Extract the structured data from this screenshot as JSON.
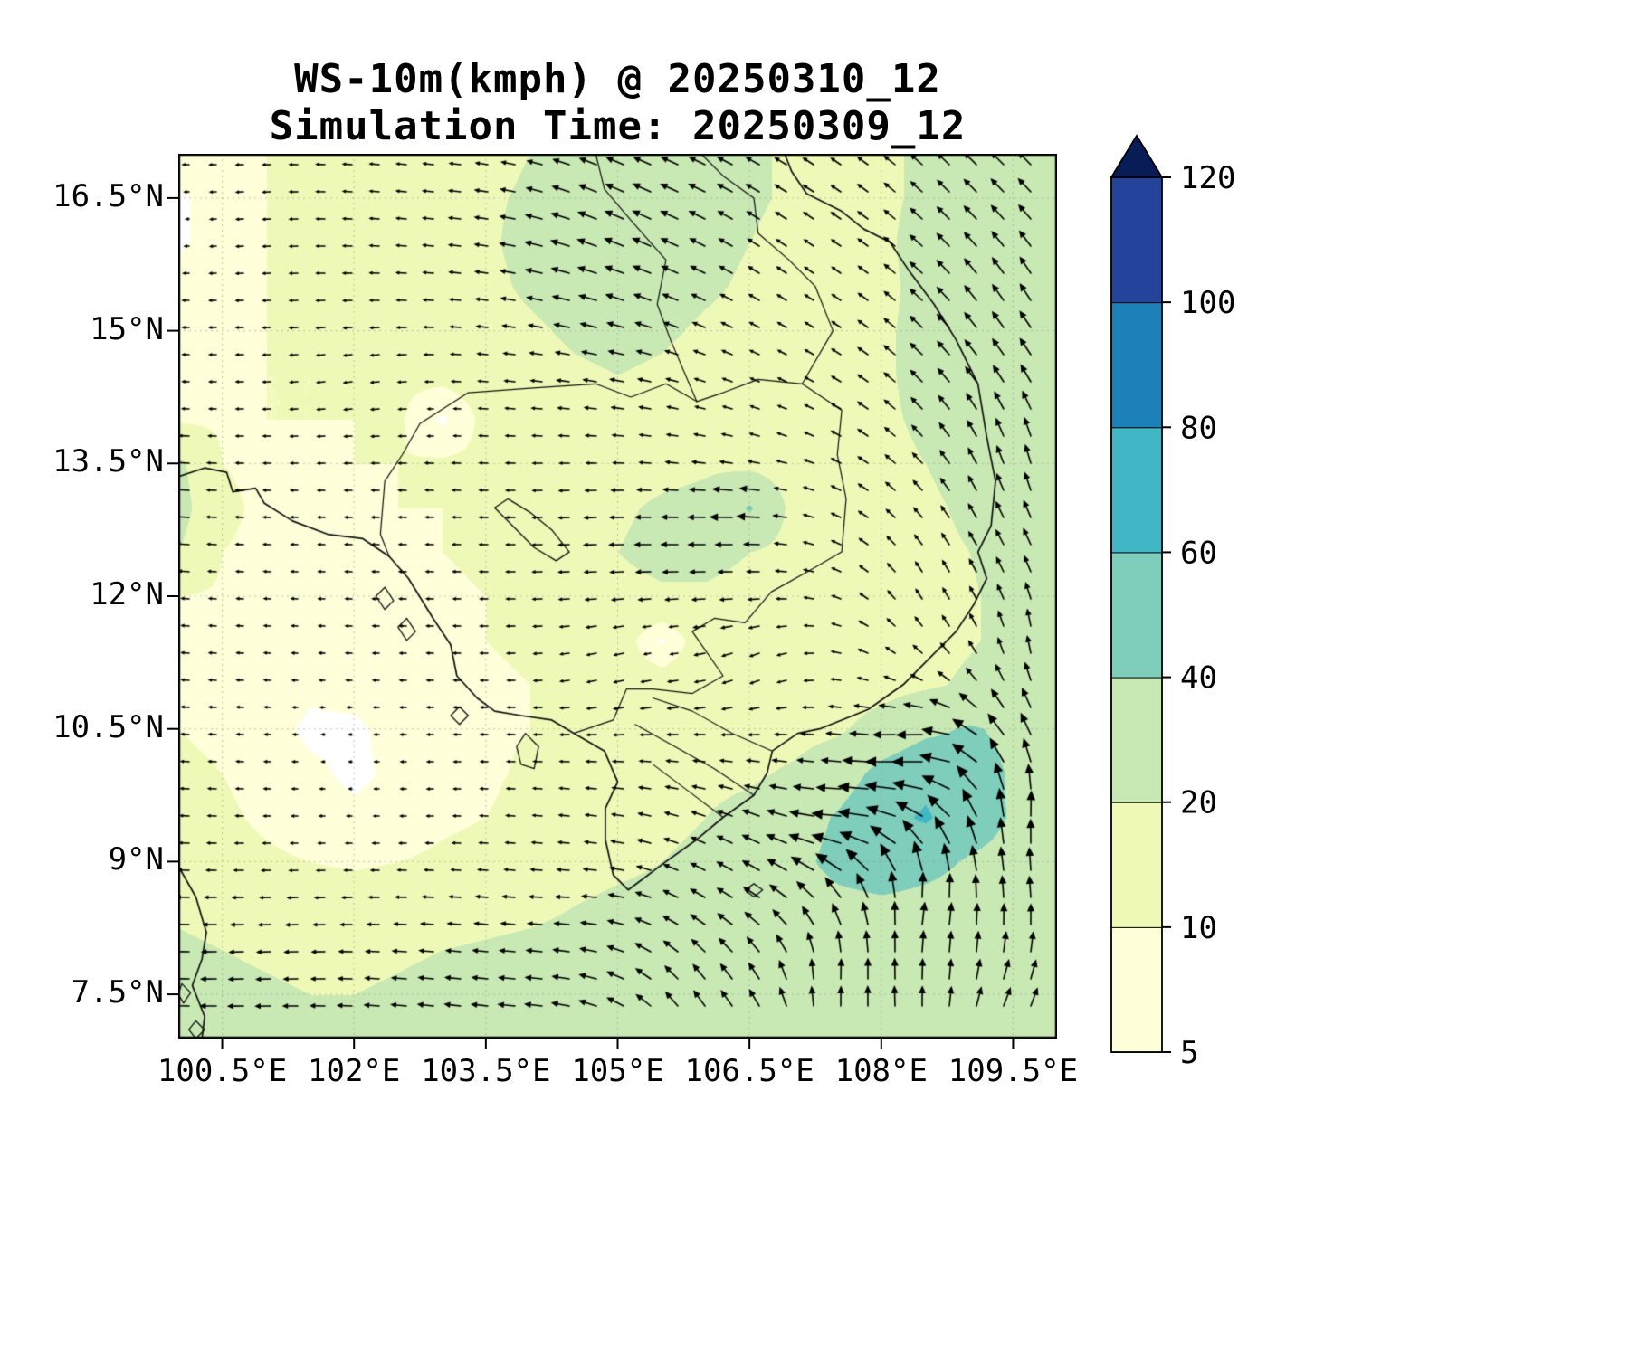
{
  "title": {
    "line1": "WS-10m(kmph) @ 20250310_12",
    "line2": "Simulation Time: 20250309_12"
  },
  "axes": {
    "x_tick_labels": [
      "100.5°E",
      "102°E",
      "103.5°E",
      "105°E",
      "106.5°E",
      "108°E",
      "109.5°E"
    ],
    "x_tick_lons": [
      100.5,
      102,
      103.5,
      105,
      106.5,
      108,
      109.5
    ],
    "y_tick_labels": [
      "16.5°N",
      "15°N",
      "13.5°N",
      "12°N",
      "10.5°N",
      "9°N",
      "7.5°N"
    ],
    "y_tick_lats": [
      16.5,
      15,
      13.5,
      12,
      10.5,
      9,
      7.5
    ],
    "lon_range": [
      100,
      110
    ],
    "lat_range": [
      7,
      17
    ]
  },
  "colorbar": {
    "labels": [
      "5",
      "10",
      "20",
      "40",
      "60",
      "80",
      "100",
      "120"
    ]
  },
  "chart_data": {
    "type": "heatmap",
    "title": "WS-10m(kmph) @ 20250310_12",
    "subtitle": "Simulation Time: 20250309_12",
    "units": "kmph",
    "variable": "10m wind speed with wind vectors",
    "lon_range": [
      100,
      110
    ],
    "lat_range": [
      7,
      17
    ],
    "levels": [
      5,
      10,
      20,
      40,
      60,
      80,
      100,
      120
    ],
    "band_colors": [
      "#ffffd9",
      "#eff9b7",
      "#c8e9b4",
      "#7fcdbb",
      "#41b6c4",
      "#1e80b8",
      "#24439a"
    ],
    "over_color": "#081d58",
    "under_color": "#ffffff",
    "speed_grid": {
      "lon_start": 100,
      "lon_step": 0.5,
      "lat_start": 17,
      "lat_step": -0.5,
      "values": [
        [
          9,
          9,
          10,
          11,
          12,
          13,
          14,
          16,
          20,
          24,
          26,
          26,
          24,
          22,
          18,
          16,
          18,
          22,
          24,
          25,
          26
        ],
        [
          4,
          8,
          10,
          11,
          12,
          13,
          15,
          18,
          22,
          26,
          28,
          28,
          26,
          22,
          18,
          16,
          18,
          22,
          25,
          26,
          26
        ],
        [
          4,
          8,
          10,
          11,
          12,
          13,
          15,
          18,
          24,
          28,
          30,
          28,
          24,
          20,
          16,
          15,
          18,
          24,
          26,
          27,
          27
        ],
        [
          8,
          9,
          10,
          11,
          12,
          13,
          14,
          17,
          22,
          26,
          28,
          26,
          22,
          18,
          15,
          14,
          17,
          24,
          27,
          28,
          28
        ],
        [
          8,
          9,
          10,
          11,
          11,
          12,
          13,
          15,
          18,
          22,
          24,
          22,
          18,
          15,
          13,
          14,
          18,
          24,
          27,
          28,
          28
        ],
        [
          8,
          9,
          10,
          10,
          11,
          11,
          12,
          13,
          15,
          18,
          20,
          18,
          15,
          13,
          12,
          14,
          18,
          24,
          26,
          28,
          28
        ],
        [
          9,
          9,
          10,
          10,
          10,
          11,
          4,
          12,
          13,
          15,
          16,
          15,
          13,
          12,
          12,
          14,
          18,
          22,
          26,
          28,
          28
        ],
        [
          22,
          10,
          9,
          9,
          10,
          10,
          11,
          11,
          12,
          13,
          14,
          16,
          18,
          16,
          13,
          14,
          17,
          20,
          24,
          27,
          28
        ],
        [
          24,
          11,
          9,
          9,
          9,
          10,
          10,
          11,
          12,
          14,
          18,
          22,
          24,
          42,
          15,
          14,
          16,
          18,
          22,
          26,
          27
        ],
        [
          20,
          10,
          9,
          8,
          9,
          9,
          10,
          11,
          12,
          15,
          20,
          24,
          24,
          20,
          15,
          13,
          15,
          17,
          20,
          24,
          26
        ],
        [
          10,
          9,
          8,
          8,
          8,
          9,
          9,
          10,
          12,
          14,
          16,
          18,
          18,
          16,
          13,
          12,
          14,
          16,
          19,
          23,
          26
        ],
        [
          10,
          9,
          8,
          7,
          8,
          8,
          9,
          10,
          11,
          12,
          14,
          4,
          15,
          14,
          12,
          12,
          14,
          16,
          19,
          23,
          26
        ],
        [
          10,
          9,
          8,
          6,
          7,
          8,
          8,
          9,
          10,
          12,
          13,
          14,
          14,
          13,
          12,
          13,
          15,
          18,
          22,
          26,
          28
        ],
        [
          10,
          9,
          7,
          4,
          4,
          7,
          8,
          9,
          10,
          12,
          13,
          14,
          14,
          14,
          15,
          18,
          26,
          36,
          42,
          36,
          30
        ],
        [
          11,
          10,
          8,
          6,
          4,
          6,
          8,
          9,
          11,
          13,
          15,
          16,
          17,
          18,
          22,
          30,
          46,
          55,
          48,
          38,
          32
        ],
        [
          12,
          11,
          9,
          7,
          6,
          7,
          9,
          10,
          12,
          14,
          16,
          18,
          20,
          24,
          30,
          42,
          55,
          62,
          50,
          38,
          34
        ],
        [
          14,
          12,
          11,
          10,
          9,
          10,
          11,
          12,
          14,
          16,
          18,
          20,
          22,
          26,
          34,
          46,
          52,
          46,
          38,
          34,
          32
        ],
        [
          18,
          16,
          15,
          14,
          14,
          15,
          16,
          17,
          18,
          20,
          22,
          23,
          24,
          26,
          30,
          34,
          36,
          34,
          32,
          30,
          30
        ],
        [
          22,
          20,
          19,
          18,
          18,
          19,
          20,
          21,
          22,
          23,
          24,
          25,
          26,
          27,
          28,
          30,
          30,
          30,
          29,
          29,
          28
        ],
        [
          24,
          22,
          21,
          20,
          20,
          21,
          22,
          23,
          24,
          25,
          26,
          26,
          27,
          27,
          28,
          28,
          29,
          28,
          28,
          28,
          27
        ],
        [
          24,
          23,
          22,
          21,
          21,
          22,
          23,
          24,
          25,
          26,
          26,
          27,
          27,
          28,
          28,
          28,
          28,
          28,
          27,
          27,
          26
        ]
      ]
    },
    "wind_direction_controls": [
      {
        "lon": 101.0,
        "lat": 7.8,
        "dir": 183
      },
      {
        "lon": 104.0,
        "lat": 7.6,
        "dir": 178
      },
      {
        "lon": 106.0,
        "lat": 7.4,
        "dir": 120
      },
      {
        "lon": 107.5,
        "lat": 7.6,
        "dir": 75
      },
      {
        "lon": 109.5,
        "lat": 7.3,
        "dir": 60
      },
      {
        "lon": 101.5,
        "lat": 8.6,
        "dir": 184
      },
      {
        "lon": 104.5,
        "lat": 8.6,
        "dir": 182
      },
      {
        "lon": 106.5,
        "lat": 8.8,
        "dir": 150
      },
      {
        "lon": 108.5,
        "lat": 8.4,
        "dir": 70
      },
      {
        "lon": 107.6,
        "lat": 9.6,
        "dir": 188
      },
      {
        "lon": 108.4,
        "lat": 10.3,
        "dir": 200
      },
      {
        "lon": 102.8,
        "lat": 9.8,
        "dir": 183
      },
      {
        "lon": 109.8,
        "lat": 9.5,
        "dir": 78
      },
      {
        "lon": 109.8,
        "lat": 11.5,
        "dir": 90
      },
      {
        "lon": 109.8,
        "lat": 13.5,
        "dir": 100
      },
      {
        "lon": 109.8,
        "lat": 15.5,
        "dir": 120
      },
      {
        "lon": 109.3,
        "lat": 16.8,
        "dir": 135
      },
      {
        "lon": 107.0,
        "lat": 15.8,
        "dir": 145
      },
      {
        "lon": 105.3,
        "lat": 16.5,
        "dir": 155
      },
      {
        "lon": 103.0,
        "lat": 16.5,
        "dir": 175
      },
      {
        "lon": 100.8,
        "lat": 16.2,
        "dir": 185
      },
      {
        "lon": 104.5,
        "lat": 13.0,
        "dir": 185
      },
      {
        "lon": 106.3,
        "lat": 12.7,
        "dir": 183
      },
      {
        "lon": 105.0,
        "lat": 11.2,
        "dir": 200
      },
      {
        "lon": 102.5,
        "lat": 11.5,
        "dir": 180
      },
      {
        "lon": 102.0,
        "lat": 14.5,
        "dir": 190
      },
      {
        "lon": 106.6,
        "lat": 11.2,
        "dir": 215
      },
      {
        "lon": 108.6,
        "lat": 12.0,
        "dir": 115
      }
    ],
    "coastlines": [
      [
        [
          100.0,
          13.35
        ],
        [
          100.3,
          13.45
        ],
        [
          100.55,
          13.4
        ],
        [
          100.62,
          13.18
        ],
        [
          100.88,
          13.22
        ],
        [
          100.98,
          13.05
        ],
        [
          101.3,
          12.85
        ],
        [
          101.7,
          12.7
        ],
        [
          102.1,
          12.65
        ],
        [
          102.4,
          12.45
        ],
        [
          102.62,
          12.2
        ],
        [
          102.9,
          11.75
        ],
        [
          103.1,
          11.45
        ],
        [
          103.17,
          11.1
        ],
        [
          103.4,
          10.85
        ],
        [
          103.6,
          10.7
        ],
        [
          103.9,
          10.65
        ],
        [
          104.25,
          10.6
        ],
        [
          104.5,
          10.45
        ],
        [
          104.85,
          10.25
        ],
        [
          105.0,
          9.9
        ],
        [
          104.86,
          9.6
        ],
        [
          104.86,
          9.25
        ],
        [
          104.95,
          8.85
        ],
        [
          105.12,
          8.68
        ],
        [
          105.55,
          9.0
        ],
        [
          105.9,
          9.25
        ],
        [
          106.2,
          9.5
        ],
        [
          106.55,
          9.75
        ],
        [
          106.7,
          10.0
        ],
        [
          106.76,
          10.25
        ],
        [
          107.05,
          10.45
        ],
        [
          107.3,
          10.5
        ],
        [
          107.85,
          10.72
        ],
        [
          108.25,
          11.0
        ],
        [
          108.55,
          11.3
        ],
        [
          108.85,
          11.6
        ],
        [
          109.05,
          11.9
        ],
        [
          109.2,
          12.2
        ],
        [
          109.1,
          12.5
        ],
        [
          109.25,
          12.8
        ],
        [
          109.3,
          13.3
        ],
        [
          109.2,
          13.8
        ],
        [
          109.1,
          14.4
        ],
        [
          108.85,
          14.9
        ],
        [
          108.6,
          15.3
        ],
        [
          108.3,
          15.7
        ],
        [
          108.1,
          16.0
        ],
        [
          107.8,
          16.15
        ],
        [
          107.55,
          16.35
        ],
        [
          107.15,
          16.55
        ],
        [
          106.98,
          16.8
        ],
        [
          106.9,
          17.0
        ]
      ],
      [
        [
          100.0,
          8.95
        ],
        [
          100.2,
          8.6
        ],
        [
          100.32,
          8.2
        ],
        [
          100.27,
          7.9
        ],
        [
          100.16,
          7.6
        ],
        [
          100.3,
          7.25
        ],
        [
          100.27,
          7.0
        ]
      ]
    ],
    "borders": [
      [
        [
          102.4,
          12.45
        ],
        [
          102.3,
          12.7
        ],
        [
          102.35,
          13.3
        ],
        [
          102.55,
          13.6
        ],
        [
          102.75,
          13.95
        ],
        [
          103.3,
          14.3
        ],
        [
          104.0,
          14.35
        ],
        [
          104.75,
          14.4
        ],
        [
          105.15,
          14.25
        ],
        [
          105.55,
          14.4
        ],
        [
          105.9,
          14.2
        ]
      ],
      [
        [
          104.75,
          17.0
        ],
        [
          104.85,
          16.6
        ],
        [
          105.15,
          16.25
        ],
        [
          105.55,
          15.8
        ],
        [
          105.45,
          15.3
        ],
        [
          105.6,
          14.9
        ],
        [
          105.9,
          14.2
        ]
      ],
      [
        [
          105.9,
          14.2
        ],
        [
          106.2,
          14.3
        ],
        [
          106.6,
          14.45
        ],
        [
          107.1,
          14.4
        ],
        [
          107.55,
          14.1
        ],
        [
          107.5,
          13.6
        ],
        [
          107.6,
          13.1
        ],
        [
          107.55,
          12.5
        ],
        [
          107.2,
          12.3
        ],
        [
          106.75,
          12.05
        ],
        [
          106.45,
          11.7
        ],
        [
          106.1,
          11.75
        ],
        [
          105.85,
          11.6
        ],
        [
          106.2,
          11.1
        ],
        [
          105.85,
          10.9
        ],
        [
          105.4,
          10.95
        ],
        [
          105.1,
          10.95
        ],
        [
          104.95,
          10.6
        ],
        [
          104.5,
          10.45
        ]
      ],
      [
        [
          107.1,
          14.4
        ],
        [
          107.45,
          15.0
        ],
        [
          107.25,
          15.5
        ],
        [
          106.95,
          15.8
        ],
        [
          106.6,
          16.1
        ],
        [
          106.55,
          16.5
        ],
        [
          106.2,
          16.75
        ],
        [
          105.95,
          17.0
        ]
      ]
    ],
    "rivers": [
      [
        [
          106.76,
          10.25
        ],
        [
          106.3,
          10.45
        ],
        [
          105.85,
          10.7
        ],
        [
          105.4,
          10.85
        ]
      ],
      [
        [
          106.55,
          9.75
        ],
        [
          106.1,
          10.05
        ],
        [
          105.65,
          10.3
        ],
        [
          105.2,
          10.55
        ]
      ],
      [
        [
          106.2,
          9.5
        ],
        [
          105.8,
          9.8
        ],
        [
          105.4,
          10.1
        ]
      ]
    ],
    "islands": [
      [
        [
          103.95,
          10.45
        ],
        [
          104.1,
          10.3
        ],
        [
          104.05,
          10.05
        ],
        [
          103.9,
          10.1
        ],
        [
          103.85,
          10.3
        ],
        [
          103.95,
          10.45
        ]
      ],
      [
        [
          103.2,
          10.75
        ],
        [
          103.3,
          10.65
        ],
        [
          103.2,
          10.55
        ],
        [
          103.1,
          10.65
        ],
        [
          103.2,
          10.75
        ]
      ],
      [
        [
          102.35,
          12.1
        ],
        [
          102.45,
          11.95
        ],
        [
          102.35,
          11.85
        ],
        [
          102.25,
          12.0
        ],
        [
          102.35,
          12.1
        ]
      ],
      [
        [
          102.6,
          11.75
        ],
        [
          102.7,
          11.6
        ],
        [
          102.6,
          11.5
        ],
        [
          102.5,
          11.65
        ],
        [
          102.6,
          11.75
        ]
      ],
      [
        [
          106.55,
          8.75
        ],
        [
          106.65,
          8.68
        ],
        [
          106.55,
          8.6
        ],
        [
          106.45,
          8.68
        ],
        [
          106.55,
          8.75
        ]
      ],
      [
        [
          100.04,
          7.62
        ],
        [
          100.14,
          7.52
        ],
        [
          100.06,
          7.4
        ],
        [
          100.0,
          7.5
        ],
        [
          100.04,
          7.62
        ]
      ],
      [
        [
          100.2,
          7.2
        ],
        [
          100.3,
          7.1
        ],
        [
          100.2,
          7.0
        ],
        [
          100.12,
          7.1
        ],
        [
          100.2,
          7.2
        ]
      ]
    ],
    "lakes": [
      [
        [
          103.75,
          13.1
        ],
        [
          104.0,
          12.95
        ],
        [
          104.25,
          12.75
        ],
        [
          104.45,
          12.5
        ],
        [
          104.3,
          12.4
        ],
        [
          104.05,
          12.55
        ],
        [
          103.8,
          12.8
        ],
        [
          103.6,
          13.0
        ],
        [
          103.75,
          13.1
        ]
      ]
    ]
  }
}
